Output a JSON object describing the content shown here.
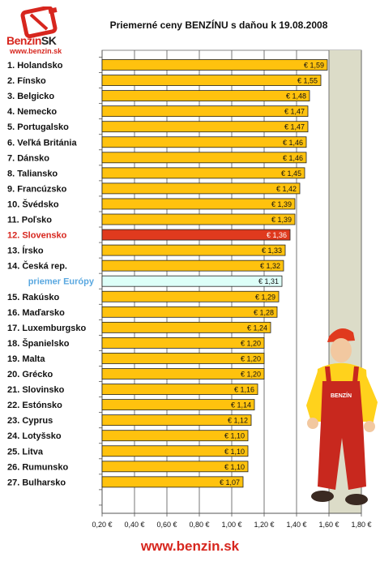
{
  "logo": {
    "name_main": "Benzin",
    "name_suffix": "SK",
    "url": "www.benzin.sk"
  },
  "chart_data": {
    "type": "bar",
    "orientation": "horizontal",
    "title": "Priemerné ceny BENZÍNU s daňou k 19.08.2008",
    "xlim": [
      0.2,
      1.8
    ],
    "xticks": [
      "0,20 €",
      "0,40 €",
      "0,60 €",
      "0,80 €",
      "1,00 €",
      "1,20 €",
      "1,40 €",
      "1,60 €",
      "1,80 €"
    ],
    "grid": true,
    "categories": [
      "1. Holandsko",
      "2. Fínsko",
      "3. Belgicko",
      "4. Nemecko",
      "5. Portugalsko",
      "6. Veľká Británia",
      "7. Dánsko",
      "8. Taliansko",
      "9. Francúzsko",
      "10. Švédsko",
      "11. Poľsko",
      "12. Slovensko",
      "13. Írsko",
      "14. Česká rep.",
      "priemer Európy",
      "15. Rakúsko",
      "16. Maďarsko",
      "17. Luxemburgsko",
      "18. Španielsko",
      "19. Malta",
      "20. Grécko",
      "21. Slovinsko",
      "22. Estónsko",
      "23. Cyprus",
      "24. Lotyšsko",
      "25. Litva",
      "26. Rumunsko",
      "27. Bulharsko"
    ],
    "values": [
      1.59,
      1.55,
      1.48,
      1.47,
      1.47,
      1.46,
      1.46,
      1.45,
      1.42,
      1.39,
      1.39,
      1.36,
      1.33,
      1.32,
      1.31,
      1.29,
      1.28,
      1.24,
      1.2,
      1.2,
      1.2,
      1.16,
      1.14,
      1.12,
      1.1,
      1.1,
      1.1,
      1.07
    ],
    "value_labels": [
      "€ 1,59",
      "€ 1,55",
      "€ 1,48",
      "€ 1,47",
      "€ 1,47",
      "€ 1,46",
      "€ 1,46",
      "€ 1,45",
      "€ 1,42",
      "€ 1,39",
      "€ 1,39",
      "€ 1,36",
      "€ 1,33",
      "€ 1,32",
      "€ 1,31",
      "€ 1,29",
      "€ 1,28",
      "€ 1,24",
      "€ 1,20",
      "€ 1,20",
      "€ 1,20",
      "€ 1,16",
      "€ 1,14",
      "€ 1,12",
      "€ 1,10",
      "€ 1,10",
      "€ 1,10",
      "€ 1,07"
    ],
    "highlight": {
      "12. Slovensko": "slovakia",
      "priemer Európy": "average"
    },
    "colors": {
      "bar": "#ffc20e",
      "bar_slovakia": "#e03a1e",
      "bar_average": "#ddfff8",
      "label_slovakia": "#d7261e",
      "label_average": "#5aa8e0",
      "plot_bg": "#ffffff",
      "plot_bg_right": "#dcdcc8"
    }
  },
  "mascot": {
    "shirt_text": "BENZÍN"
  },
  "footer": {
    "url": "www.benzin.sk"
  }
}
